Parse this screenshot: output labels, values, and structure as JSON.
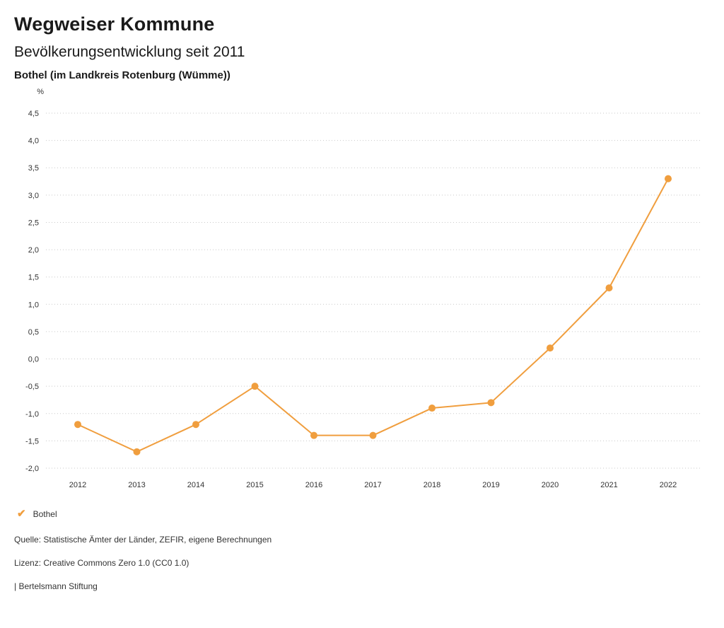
{
  "header": {
    "title": "Wegweiser Kommune",
    "subtitle": "Bevölkerungsentwicklung seit 2011",
    "location": "Bothel (im Landkreis Rotenburg (Wümme))"
  },
  "chart_data": {
    "type": "line",
    "title": "Bevölkerungsentwicklung seit 2011",
    "unit_label": "%",
    "x": [
      "2012",
      "2013",
      "2014",
      "2015",
      "2016",
      "2017",
      "2018",
      "2019",
      "2020",
      "2021",
      "2022"
    ],
    "series": [
      {
        "name": "Bothel",
        "color": "#f09e3e",
        "values": [
          -1.2,
          -1.7,
          -1.2,
          -0.5,
          -1.4,
          -1.4,
          -0.9,
          -0.8,
          0.2,
          1.3,
          3.3
        ]
      }
    ],
    "ylim": [
      -2.0,
      4.5
    ],
    "ytick_step": 0.5,
    "grid": true,
    "grid_style": "dotted",
    "legend_position": "bottom-left"
  },
  "legend": {
    "items": [
      {
        "label": "Bothel",
        "color": "#f09e3e",
        "icon": "check"
      }
    ]
  },
  "footer": {
    "source": "Quelle: Statistische Ämter der Länder, ZEFIR, eigene Berechnungen",
    "license": "Lizenz: Creative Commons Zero 1.0 (CC0 1.0)",
    "attribution": "| Bertelsmann Stiftung"
  }
}
